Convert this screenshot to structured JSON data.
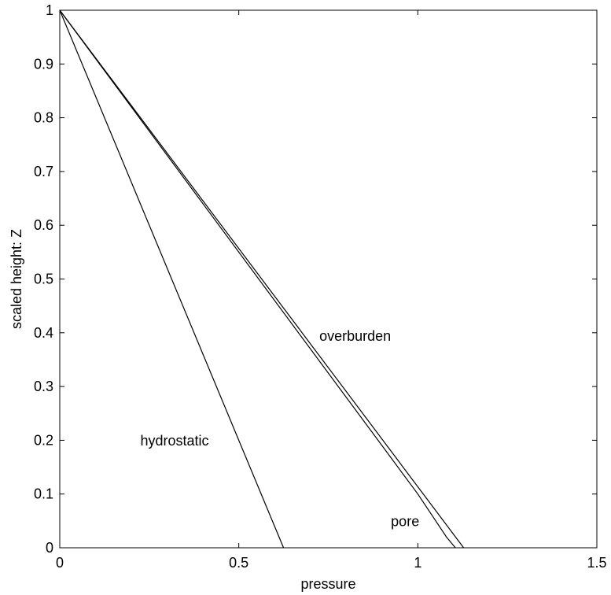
{
  "chart_data": {
    "type": "line",
    "title": "",
    "xlabel": "pressure",
    "ylabel": "scaled height: Z",
    "xlim": [
      0,
      1.5
    ],
    "ylim": [
      0,
      1
    ],
    "x_ticks": [
      0,
      0.5,
      1,
      1.5
    ],
    "x_tick_labels": [
      "0",
      "0.5",
      "1",
      "1.5"
    ],
    "y_ticks": [
      0,
      0.1,
      0.2,
      0.3,
      0.4,
      0.5,
      0.6,
      0.7,
      0.8,
      0.9,
      1
    ],
    "y_tick_labels": [
      "0",
      "0.1",
      "0.2",
      "0.3",
      "0.4",
      "0.5",
      "0.6",
      "0.7",
      "0.8",
      "0.9",
      "1"
    ],
    "grid": false,
    "line_color": "#000000",
    "series": [
      {
        "name": "hydrostatic",
        "points": [
          [
            0,
            1
          ],
          [
            0.625,
            0
          ]
        ]
      },
      {
        "name": "overburden",
        "points": [
          [
            0,
            1
          ],
          [
            1.128,
            0
          ]
        ]
      },
      {
        "name": "pore",
        "points": [
          [
            0,
            1
          ],
          [
            1.0,
            0.1
          ],
          [
            1.05,
            0.05
          ],
          [
            1.08,
            0.02
          ],
          [
            1.105,
            0
          ]
        ]
      }
    ],
    "annotations": [
      {
        "text": "hydrostatic",
        "x": 0.225,
        "y": 0.19
      },
      {
        "text": "overburden",
        "x": 0.725,
        "y": 0.385
      },
      {
        "text": "pore",
        "x": 0.925,
        "y": 0.04
      }
    ]
  }
}
